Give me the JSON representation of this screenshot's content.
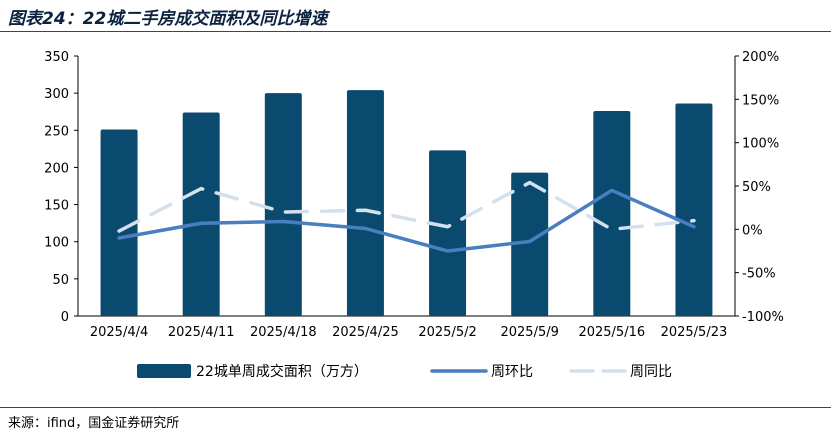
{
  "title": "图表24：22城二手房成交面积及同比增速",
  "source": "来源：ifind，国金证券研究所",
  "colors": {
    "bar": "#0b4a6f",
    "mom": "#4a7fbf",
    "yoy": "#d3e1ef",
    "axis": "#000000"
  },
  "chart_data": {
    "type": "bar",
    "title": "22城二手房成交面积及同比增速",
    "categories": [
      "2025/4/4",
      "2025/4/11",
      "2025/4/18",
      "2025/4/25",
      "2025/5/2",
      "2025/5/9",
      "2025/5/16",
      "2025/5/23"
    ],
    "series": [
      {
        "name": "22城单周成交面积（万方）",
        "type": "bar",
        "axis": "left",
        "values": [
          251,
          274,
          300,
          304,
          223,
          193,
          276,
          286
        ]
      },
      {
        "name": "周环比",
        "type": "line",
        "axis": "right",
        "unit": "%",
        "values": [
          -10,
          7,
          9,
          1,
          -25,
          -14,
          45,
          3
        ]
      },
      {
        "name": "周同比",
        "type": "line",
        "style": "dashed",
        "axis": "right",
        "unit": "%",
        "values": [
          -2,
          47,
          20,
          22,
          3,
          54,
          0,
          10
        ]
      }
    ],
    "y_left": {
      "min": 0,
      "max": 350,
      "step": 50,
      "ticks": [
        "0",
        "50",
        "100",
        "150",
        "200",
        "250",
        "300",
        "350"
      ]
    },
    "y_right": {
      "min": -100,
      "max": 200,
      "step": 50,
      "ticks": [
        "-100%",
        "-50%",
        "0%",
        "50%",
        "100%",
        "150%",
        "200%"
      ]
    },
    "legend": {
      "position": "bottom",
      "items": [
        "22城单周成交面积（万方）",
        "周环比",
        "周同比"
      ]
    },
    "grid": false
  }
}
